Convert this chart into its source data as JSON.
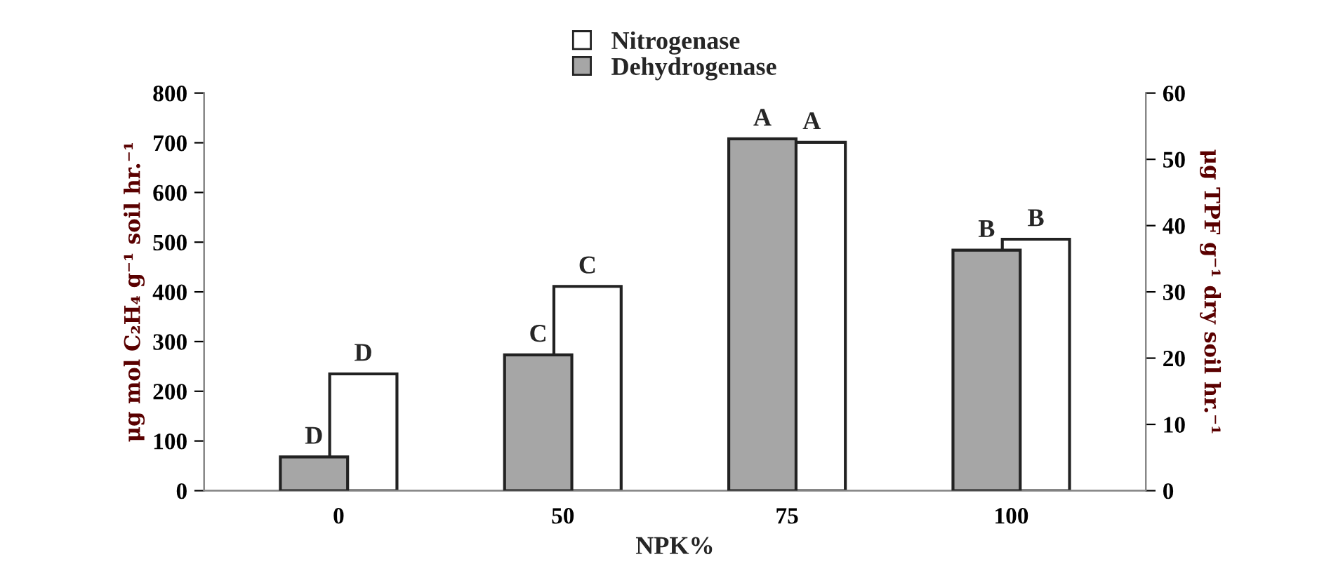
{
  "chart_data": {
    "type": "bar",
    "xlabel": "NPK%",
    "ylabel": "μg mol C₂H₄ g⁻¹ soil hr.⁻¹",
    "y2label": "μg TPF g⁻¹ dry soil hr.⁻¹",
    "categories": [
      "0",
      "50",
      "75",
      "100"
    ],
    "series": [
      {
        "name": "Nitrogenase",
        "color": "#ffffff",
        "values": [
          235,
          411,
          701,
          506
        ],
        "value_labels": [
          "D",
          "C",
          "A",
          "B"
        ]
      },
      {
        "name": "Dehydrogenase",
        "color": "#a6a6a6",
        "axis": "y2",
        "values": [
          5.1,
          20.5,
          53.1,
          36.3
        ],
        "value_labels": [
          "D",
          "C",
          "A",
          "B"
        ]
      }
    ],
    "ylim": [
      0,
      800
    ],
    "yticks": [
      0,
      100,
      200,
      300,
      400,
      500,
      600,
      700,
      800
    ],
    "y2lim": [
      0,
      60
    ],
    "y2ticks": [
      0,
      10,
      20,
      30,
      40,
      50,
      60
    ],
    "legend": "top",
    "grid": false
  }
}
